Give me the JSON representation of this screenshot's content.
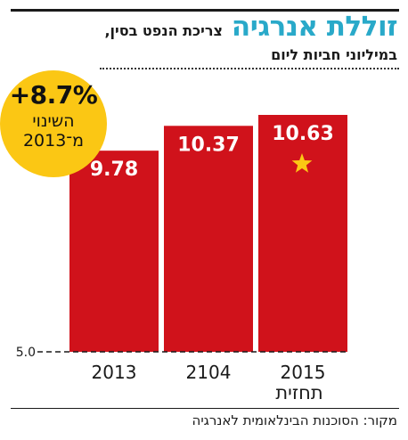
{
  "header": {
    "title": "זוללת אנרגיה",
    "title_detail": "צריכת הנפט בסין,",
    "subtitle": "במיליוני חביות ליום"
  },
  "badge": {
    "value": "+8.7%",
    "label_line1": "השינוי",
    "label_line2": "מ־2013"
  },
  "footer": {
    "forecast_label": "תחזית",
    "source": "מקור: הסוכנות הבינלאומית לאנרגיה"
  },
  "colors": {
    "bar": "#d0121b",
    "title": "#29a9c9",
    "badge": "#fbc714",
    "star": "#fbc714"
  },
  "chart_data": {
    "type": "bar",
    "categories": [
      "2013",
      "2104",
      "2015"
    ],
    "values": [
      9.78,
      10.37,
      10.63
    ],
    "value_labels": [
      "9.78",
      "10.37",
      "10.63"
    ],
    "ylim": [
      5.0,
      10.63
    ],
    "y_axis_label": "5.0",
    "forecast_marker": {
      "category": "2015",
      "icon": "star-icon"
    },
    "grid": false,
    "legend": "none"
  }
}
